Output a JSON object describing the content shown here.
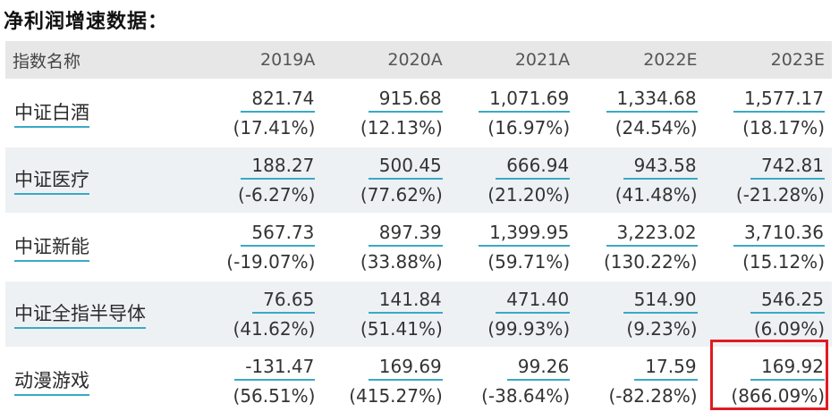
{
  "title": "净利润增速数据：",
  "table": {
    "headers": [
      "指数名称",
      "2019A",
      "2020A",
      "2021A",
      "2022E",
      "2023E"
    ],
    "rows": [
      {
        "name": "中证白酒",
        "cells": [
          {
            "value": "821.74",
            "growth": "(17.41%)"
          },
          {
            "value": "915.68",
            "growth": "(12.13%)"
          },
          {
            "value": "1,071.69",
            "growth": "(16.97%)"
          },
          {
            "value": "1,334.68",
            "growth": "(24.54%)"
          },
          {
            "value": "1,577.17",
            "growth": "(18.17%)"
          }
        ]
      },
      {
        "name": "中证医疗",
        "cells": [
          {
            "value": "188.27",
            "growth": "(-6.27%)"
          },
          {
            "value": "500.45",
            "growth": "(77.62%)"
          },
          {
            "value": "666.94",
            "growth": "(21.20%)"
          },
          {
            "value": "943.58",
            "growth": "(41.48%)"
          },
          {
            "value": "742.81",
            "growth": "(-21.28%)"
          }
        ]
      },
      {
        "name": "中证新能",
        "cells": [
          {
            "value": "567.73",
            "growth": "(-19.07%)"
          },
          {
            "value": "897.39",
            "growth": "(33.88%)"
          },
          {
            "value": "1,399.95",
            "growth": "(59.71%)"
          },
          {
            "value": "3,223.02",
            "growth": "(130.22%)"
          },
          {
            "value": "3,710.36",
            "growth": "(15.12%)"
          }
        ]
      },
      {
        "name": "中证全指半导体",
        "cells": [
          {
            "value": "76.65",
            "growth": "(41.62%)"
          },
          {
            "value": "141.84",
            "growth": "(51.41%)"
          },
          {
            "value": "471.40",
            "growth": "(99.93%)"
          },
          {
            "value": "514.90",
            "growth": "(9.23%)"
          },
          {
            "value": "546.25",
            "growth": "(6.09%)"
          }
        ]
      },
      {
        "name": "动漫游戏",
        "cells": [
          {
            "value": "-131.47",
            "growth": "(56.51%)"
          },
          {
            "value": "169.69",
            "growth": "(415.27%)"
          },
          {
            "value": "99.26",
            "growth": "(-38.64%)"
          },
          {
            "value": "17.59",
            "growth": "(-82.28%)"
          },
          {
            "value": "169.92",
            "growth": "(866.09%)"
          }
        ]
      }
    ]
  },
  "colors": {
    "header_bg": "#e7e7e7",
    "alt_row_bg": "#eef1f4",
    "link_underline": "#3aa9c4",
    "highlight_border": "#e01b22"
  }
}
